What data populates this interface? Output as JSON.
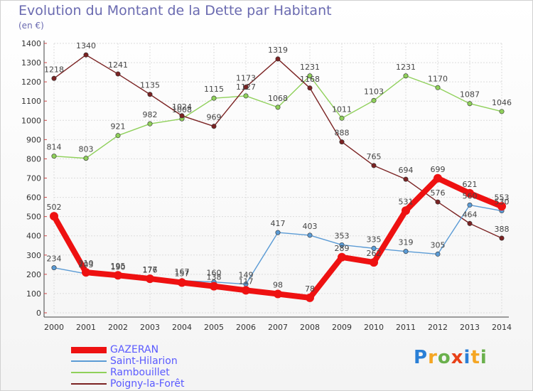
{
  "chart_data": {
    "type": "line",
    "title": "Evolution du Montant de la Dette par Habitant",
    "subtitle": "(en €)",
    "x": [
      "2000",
      "2001",
      "2002",
      "2003",
      "2004",
      "2005",
      "2006",
      "2007",
      "2008",
      "2009",
      "2010",
      "2011",
      "2012",
      "2013",
      "2014"
    ],
    "ylim": [
      0,
      1400
    ],
    "yticks": [
      0,
      100,
      200,
      300,
      400,
      500,
      600,
      700,
      800,
      900,
      1000,
      1100,
      1200,
      1300,
      1400
    ],
    "grid": true,
    "legend_position": "bottom-left",
    "series": [
      {
        "name": "GAZERAN",
        "color": "#ee1111",
        "values": [
          502,
          210,
          195,
          177,
          157,
          138,
          117,
          98,
          78,
          289,
          262,
          531,
          699,
          621,
          553
        ]
      },
      {
        "name": "Saint-Hilarion",
        "color": "#5b9bd5",
        "values": [
          234,
          203,
          190,
          176,
          167,
          160,
          149,
          417,
          403,
          353,
          335,
          319,
          305,
          560,
          530
        ]
      },
      {
        "name": "Rambouillet",
        "color": "#8fd05a",
        "values": [
          814,
          803,
          921,
          982,
          1008,
          1115,
          1127,
          1068,
          1231,
          1011,
          1103,
          1231,
          1170,
          1087,
          1046
        ]
      },
      {
        "name": "Poigny-la-Forêt",
        "color": "#7b2323",
        "values": [
          1218,
          1340,
          1241,
          1135,
          1024,
          969,
          1173,
          1319,
          1168,
          888,
          765,
          694,
          576,
          464,
          388
        ]
      }
    ]
  },
  "logo": {
    "letters": [
      "P",
      "r",
      "o",
      "x",
      "i",
      "t",
      "i"
    ],
    "colors": [
      "#2a7fd6",
      "#f5a623",
      "#6ab04c",
      "#e84118",
      "#2a7fd6",
      "#f5a623",
      "#6ab04c"
    ]
  }
}
